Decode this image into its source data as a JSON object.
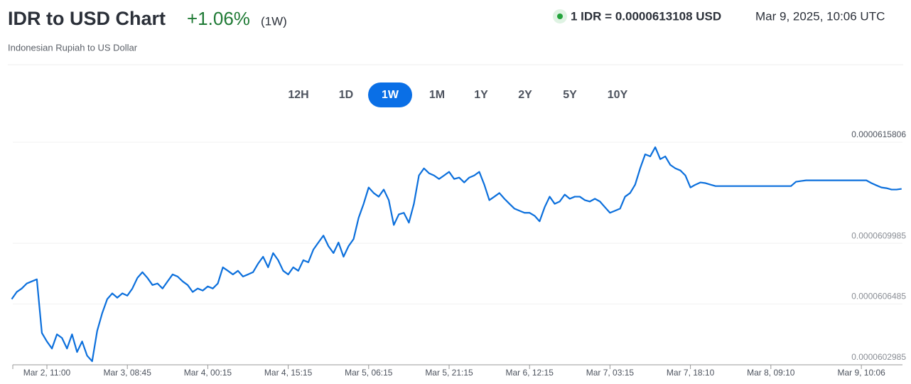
{
  "header": {
    "title": "IDR to USD Chart",
    "change": "+1.06%",
    "period": "(1W)",
    "subtitle": "Indonesian Rupiah to US Dollar",
    "rate": "1 IDR = 0.0000613108 USD",
    "timestamp": "Mar 9, 2025, 10:06 UTC"
  },
  "range_buttons": {
    "options": [
      "12H",
      "1D",
      "1W",
      "1M",
      "1Y",
      "2Y",
      "5Y",
      "10Y"
    ],
    "selected": "1W"
  },
  "chart_data": {
    "type": "line",
    "color": "#0b6fdc",
    "grid": true,
    "ylim": [
      6.02985e-05,
      6.15806e-05
    ],
    "yticks": [
      {
        "value": 6.02985e-05,
        "label": "0.0000602985"
      },
      {
        "value": 6.06485e-05,
        "label": "0.0000606485"
      },
      {
        "value": 6.09985e-05,
        "label": "0.0000609985"
      },
      {
        "value": 6.15806e-05,
        "label": "0.0000615806"
      }
    ],
    "categories": [
      null,
      null,
      null,
      null,
      null,
      null,
      null,
      "Mar 2, 11:00",
      null,
      null,
      null,
      null,
      null,
      null,
      null,
      null,
      null,
      null,
      null,
      null,
      null,
      null,
      null,
      "Mar 3, 08:45",
      null,
      null,
      null,
      null,
      null,
      null,
      null,
      null,
      null,
      null,
      null,
      null,
      null,
      null,
      null,
      "Mar 4, 00:15",
      null,
      null,
      null,
      null,
      null,
      null,
      null,
      null,
      null,
      null,
      null,
      null,
      null,
      null,
      null,
      "Mar 4, 15:15",
      null,
      null,
      null,
      null,
      null,
      null,
      null,
      null,
      null,
      null,
      null,
      null,
      null,
      null,
      null,
      "Mar 5, 06:15",
      null,
      null,
      null,
      null,
      null,
      null,
      null,
      null,
      null,
      null,
      null,
      null,
      null,
      null,
      null,
      "Mar 5, 21:15",
      null,
      null,
      null,
      null,
      null,
      null,
      null,
      null,
      null,
      null,
      null,
      null,
      null,
      null,
      null,
      "Mar 6, 12:15",
      null,
      null,
      null,
      null,
      null,
      null,
      null,
      null,
      null,
      null,
      null,
      null,
      null,
      null,
      null,
      "Mar 7, 03:15",
      null,
      null,
      null,
      null,
      null,
      null,
      null,
      null,
      null,
      null,
      null,
      null,
      null,
      null,
      null,
      "Mar 7, 18:10",
      null,
      null,
      null,
      null,
      null,
      null,
      null,
      null,
      null,
      null,
      null,
      null,
      null,
      null,
      null,
      "Mar 8, 09:10",
      null,
      null,
      null,
      null,
      null,
      null,
      null,
      null,
      null,
      null,
      null,
      null,
      null,
      null,
      null,
      null,
      null,
      "Mar 9, 10:06",
      null,
      null,
      null,
      null,
      null,
      null,
      null,
      null
    ],
    "values": [
      6.0677e-05,
      6.0718e-05,
      6.0738e-05,
      6.0767e-05,
      6.0779e-05,
      6.0791e-05,
      6.0482e-05,
      6.0433e-05,
      6.0392e-05,
      6.0474e-05,
      6.0453e-05,
      6.0392e-05,
      6.0474e-05,
      6.0372e-05,
      6.0433e-05,
      6.0351e-05,
      6.0319e-05,
      6.0494e-05,
      6.0596e-05,
      6.0677e-05,
      6.071e-05,
      6.0685e-05,
      6.071e-05,
      6.0697e-05,
      6.0738e-05,
      6.0799e-05,
      6.0832e-05,
      6.0799e-05,
      6.0758e-05,
      6.0767e-05,
      6.0738e-05,
      6.0779e-05,
      6.0819e-05,
      6.0807e-05,
      6.0779e-05,
      6.0758e-05,
      6.0718e-05,
      6.0738e-05,
      6.0726e-05,
      6.075e-05,
      6.0738e-05,
      6.0767e-05,
      6.086e-05,
      6.084e-05,
      6.0819e-05,
      6.084e-05,
      6.0807e-05,
      6.0819e-05,
      6.0832e-05,
      6.0881e-05,
      6.0921e-05,
      6.086e-05,
      6.0942e-05,
      6.0901e-05,
      6.084e-05,
      6.0819e-05,
      6.086e-05,
      6.084e-05,
      6.0901e-05,
      6.0889e-05,
      6.0962e-05,
      6.1003e-05,
      6.1043e-05,
      6.0982e-05,
      6.0942e-05,
      6.1003e-05,
      6.0921e-05,
      6.0982e-05,
      6.1023e-05,
      6.1145e-05,
      6.1226e-05,
      6.132e-05,
      6.1288e-05,
      6.1267e-05,
      6.1308e-05,
      6.1247e-05,
      6.1104e-05,
      6.1165e-05,
      6.1174e-05,
      6.1117e-05,
      6.1226e-05,
      6.1389e-05,
      6.143e-05,
      6.1402e-05,
      6.1389e-05,
      6.1369e-05,
      6.1389e-05,
      6.141e-05,
      6.1369e-05,
      6.1377e-05,
      6.1349e-05,
      6.1377e-05,
      6.1389e-05,
      6.141e-05,
      6.1336e-05,
      6.1247e-05,
      6.1267e-05,
      6.1288e-05,
      6.1255e-05,
      6.1226e-05,
      6.1198e-05,
      6.1186e-05,
      6.1174e-05,
      6.1174e-05,
      6.1157e-05,
      6.1125e-05,
      6.1206e-05,
      6.1267e-05,
      6.1226e-05,
      6.1239e-05,
      6.1279e-05,
      6.1255e-05,
      6.1267e-05,
      6.1267e-05,
      6.1247e-05,
      6.1239e-05,
      6.1255e-05,
      6.1239e-05,
      6.1206e-05,
      6.1174e-05,
      6.1186e-05,
      6.1198e-05,
      6.1267e-05,
      6.1288e-05,
      6.1336e-05,
      6.143e-05,
      6.1511e-05,
      6.1499e-05,
      6.1552e-05,
      6.1483e-05,
      6.1499e-05,
      6.145e-05,
      6.143e-05,
      6.1418e-05,
      6.1389e-05,
      6.132e-05,
      6.1336e-05,
      6.1349e-05,
      6.1345e-05,
      6.1336e-05,
      6.1328e-05,
      6.1328e-05,
      6.1328e-05,
      6.1328e-05,
      6.1328e-05,
      6.1328e-05,
      6.1328e-05,
      6.1328e-05,
      6.1328e-05,
      6.1328e-05,
      6.1328e-05,
      6.1328e-05,
      6.1328e-05,
      6.1328e-05,
      6.1328e-05,
      6.1328e-05,
      6.1353e-05,
      6.1357e-05,
      6.1361e-05,
      6.1361e-05,
      6.1361e-05,
      6.1361e-05,
      6.1361e-05,
      6.1361e-05,
      6.1361e-05,
      6.1361e-05,
      6.1361e-05,
      6.1361e-05,
      6.1361e-05,
      6.1361e-05,
      6.1361e-05,
      6.1345e-05,
      6.1332e-05,
      6.132e-05,
      6.1316e-05,
      6.1308e-05,
      6.1308e-05,
      6.1312e-05
    ]
  }
}
